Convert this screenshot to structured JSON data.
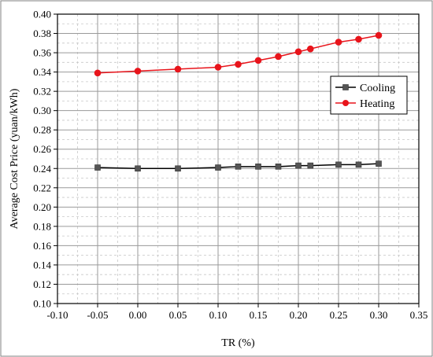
{
  "chart_data": {
    "type": "line",
    "title": "",
    "xlabel": "TR (%)",
    "ylabel": "Average Cost Price (yuan/kWh)",
    "xlim": [
      -0.1,
      0.35
    ],
    "ylim": [
      0.1,
      0.4
    ],
    "x_ticks": [
      "-0.10",
      "-0.05",
      "0.00",
      "0.05",
      "0.10",
      "0.15",
      "0.20",
      "0.25",
      "0.30",
      "0.35"
    ],
    "y_ticks": [
      "0.10",
      "0.12",
      "0.14",
      "0.16",
      "0.18",
      "0.20",
      "0.22",
      "0.24",
      "0.26",
      "0.28",
      "0.30",
      "0.32",
      "0.34",
      "0.36",
      "0.38",
      "0.40"
    ],
    "grid": true,
    "legend_position": "center-right",
    "series": [
      {
        "name": "Cooling",
        "color": "#000000",
        "marker": "square",
        "marker_color": "#555555",
        "x": [
          -0.05,
          0.0,
          0.05,
          0.1,
          0.125,
          0.15,
          0.175,
          0.2,
          0.215,
          0.25,
          0.275,
          0.3
        ],
        "y": [
          0.241,
          0.24,
          0.24,
          0.241,
          0.242,
          0.242,
          0.242,
          0.243,
          0.243,
          0.244,
          0.244,
          0.245
        ]
      },
      {
        "name": "Heating",
        "color": "#e8141b",
        "marker": "circle",
        "marker_color": "#e8141b",
        "x": [
          -0.05,
          0.0,
          0.05,
          0.1,
          0.125,
          0.15,
          0.175,
          0.2,
          0.215,
          0.25,
          0.275,
          0.3
        ],
        "y": [
          0.339,
          0.341,
          0.343,
          0.345,
          0.348,
          0.352,
          0.356,
          0.361,
          0.364,
          0.371,
          0.374,
          0.378
        ]
      }
    ]
  }
}
